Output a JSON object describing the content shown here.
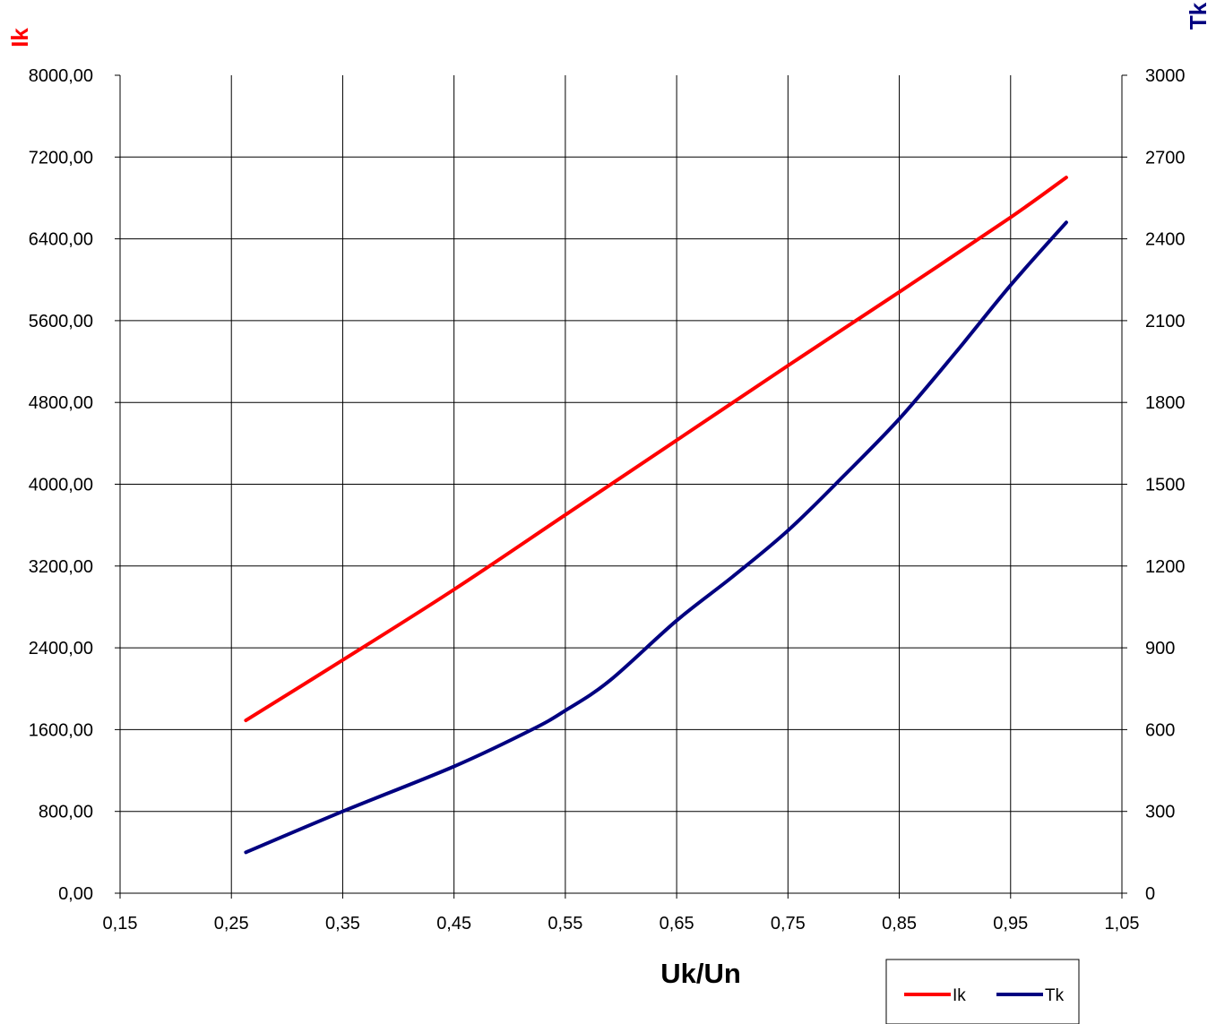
{
  "chart_data": {
    "type": "line",
    "xlabel": "Uk/Un",
    "y1label": "Ik",
    "y2label": "Tk",
    "xlim": [
      0.15,
      1.05
    ],
    "x_ticks": [
      "0,15",
      "0,25",
      "0,35",
      "0,45",
      "0,55",
      "0,65",
      "0,75",
      "0,85",
      "0,95",
      "1,05"
    ],
    "y1lim": [
      0,
      8000
    ],
    "y1_ticks": [
      "0,00",
      "800,00",
      "1600,00",
      "2400,00",
      "3200,00",
      "4000,00",
      "4800,00",
      "5600,00",
      "6400,00",
      "7200,00",
      "8000,00"
    ],
    "y2lim": [
      0,
      3000
    ],
    "y2_ticks": [
      "0",
      "300",
      "600",
      "900",
      "1200",
      "1500",
      "1800",
      "2100",
      "2400",
      "2700",
      "3000"
    ],
    "grid": true,
    "legend": "bottom-right",
    "series": [
      {
        "name": "Ik",
        "axis": "left",
        "color": "#ff0000",
        "x": [
          0.263,
          0.35,
          0.45,
          0.55,
          0.65,
          0.75,
          0.85,
          0.95,
          1.0
        ],
        "y": [
          1690,
          2280,
          2970,
          3700,
          4430,
          5160,
          5880,
          6610,
          7000
        ]
      },
      {
        "name": "Tk",
        "axis": "right",
        "color": "#000080",
        "x": [
          0.263,
          0.35,
          0.45,
          0.52,
          0.55,
          0.59,
          0.65,
          0.7,
          0.75,
          0.8,
          0.85,
          0.9,
          0.95,
          1.0
        ],
        "y": [
          150,
          300,
          465,
          600,
          670,
          780,
          1000,
          1160,
          1330,
          1530,
          1740,
          1980,
          2230,
          2460
        ]
      }
    ]
  }
}
